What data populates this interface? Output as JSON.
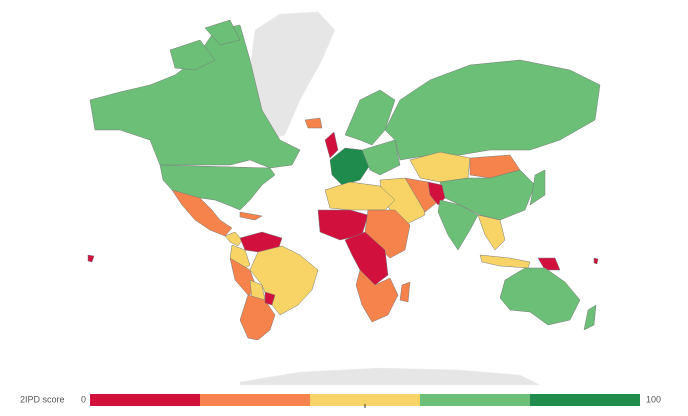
{
  "legend": {
    "title": "2IPD score",
    "min": 0,
    "max": 100,
    "colors": [
      "#d2103e",
      "#f5834b",
      "#f7d465",
      "#6bbf77",
      "#1f8b4c"
    ]
  }
}
